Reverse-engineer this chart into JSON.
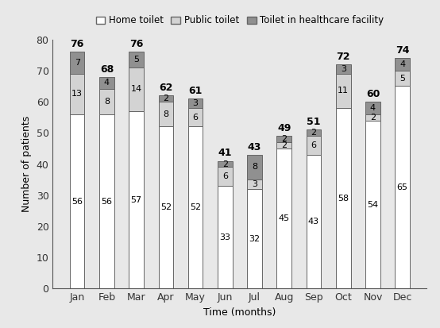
{
  "months": [
    "Jan",
    "Feb",
    "Mar",
    "Apr",
    "May",
    "Jun",
    "Jul",
    "Aug",
    "Sep",
    "Oct",
    "Nov",
    "Dec"
  ],
  "home": [
    56,
    56,
    57,
    52,
    52,
    33,
    32,
    45,
    43,
    58,
    54,
    65
  ],
  "public": [
    13,
    8,
    14,
    8,
    6,
    6,
    3,
    2,
    6,
    11,
    2,
    5
  ],
  "healthcare": [
    7,
    4,
    5,
    2,
    3,
    2,
    8,
    2,
    2,
    3,
    4,
    4
  ],
  "totals": [
    76,
    68,
    76,
    62,
    61,
    41,
    43,
    49,
    51,
    72,
    60,
    74
  ],
  "color_home": "#ffffff",
  "color_public": "#d3d3d3",
  "color_healthcare": "#909090",
  "bar_edge_color": "#666666",
  "bar_width": 0.5,
  "ylim": [
    0,
    80
  ],
  "yticks": [
    0,
    10,
    20,
    30,
    40,
    50,
    60,
    70,
    80
  ],
  "xlabel": "Time (months)",
  "ylabel": "Number of patients",
  "legend_labels": [
    "Home toilet",
    "Public toilet",
    "Toilet in healthcare facility"
  ],
  "fig_bg_color": "#e8e8e8",
  "axes_bg_color": "#e8e8e8",
  "label_fontsize": 9,
  "tick_fontsize": 9,
  "annotation_fontsize": 8,
  "total_fontsize": 9
}
